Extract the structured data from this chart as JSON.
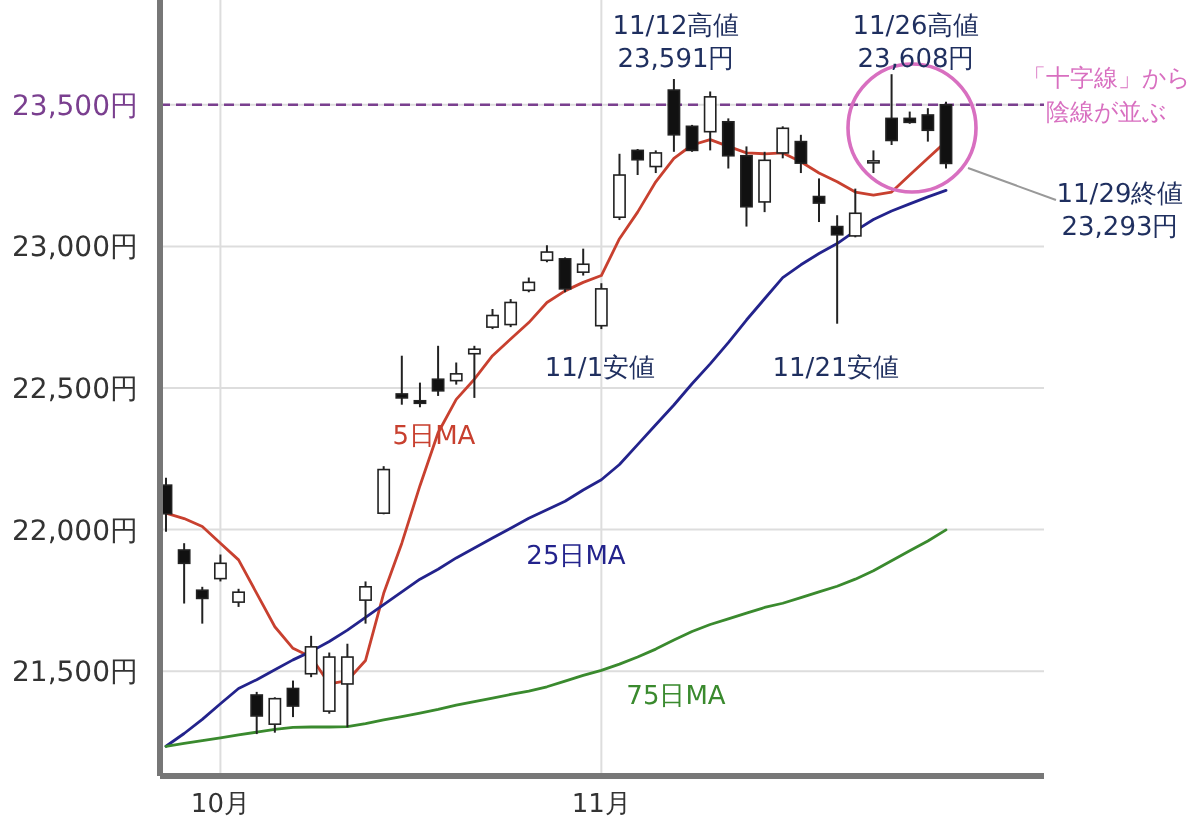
{
  "chart_data": {
    "type": "candlestick",
    "categories": [
      null,
      null,
      null,
      "10月",
      null,
      null,
      null,
      null,
      null,
      null,
      null,
      null,
      null,
      null,
      null,
      null,
      null,
      null,
      null,
      null,
      null,
      null,
      null,
      null,
      "11月",
      null,
      null,
      null,
      null,
      null,
      null,
      null,
      null,
      null,
      null,
      null,
      null,
      null,
      null,
      null,
      null,
      null,
      null,
      null
    ],
    "ohlc": [
      [
        22157,
        22183,
        21992,
        22056
      ],
      [
        21928,
        21952,
        21739,
        21881
      ],
      [
        21786,
        21798,
        21668,
        21757
      ],
      [
        21827,
        21912,
        21817,
        21881
      ],
      [
        21744,
        21791,
        21727,
        21779
      ],
      [
        21416,
        21427,
        21278,
        21342
      ],
      [
        21313,
        21408,
        21283,
        21403
      ],
      [
        21439,
        21467,
        21338,
        21377
      ],
      [
        21491,
        21625,
        21479,
        21586
      ],
      [
        21359,
        21566,
        21350,
        21550
      ],
      [
        21455,
        21597,
        21302,
        21550
      ],
      [
        21751,
        21817,
        21668,
        21798
      ],
      [
        22058,
        22224,
        22054,
        22212
      ],
      [
        22479,
        22614,
        22441,
        22465
      ],
      [
        22455,
        22519,
        22432,
        22446
      ],
      [
        22531,
        22649,
        22472,
        22490
      ],
      [
        22526,
        22590,
        22512,
        22550
      ],
      [
        22621,
        22649,
        22465,
        22637
      ],
      [
        22715,
        22779,
        22708,
        22756
      ],
      [
        22724,
        22814,
        22715,
        22802
      ],
      [
        22845,
        22890,
        22838,
        22873
      ],
      [
        22951,
        23004,
        22944,
        22980
      ],
      [
        22956,
        22961,
        22838,
        22850
      ],
      [
        22909,
        22992,
        22897,
        22937
      ],
      [
        22720,
        22870,
        22708,
        22850
      ],
      [
        23103,
        23327,
        23093,
        23252
      ],
      [
        23339,
        23344,
        23252,
        23306
      ],
      [
        23282,
        23339,
        23259,
        23330
      ],
      [
        23552,
        23591,
        23334,
        23394
      ],
      [
        23424,
        23429,
        23334,
        23339
      ],
      [
        23405,
        23547,
        23339,
        23528
      ],
      [
        23440,
        23452,
        23275,
        23320
      ],
      [
        23320,
        23353,
        23070,
        23140
      ],
      [
        23157,
        23334,
        23121,
        23304
      ],
      [
        23330,
        23424,
        23311,
        23417
      ],
      [
        23370,
        23394,
        23259,
        23294
      ],
      [
        23176,
        23240,
        23086,
        23153
      ],
      [
        23070,
        23110,
        22727,
        23041
      ],
      [
        23037,
        23204,
        23032,
        23117
      ],
      [
        23296,
        23339,
        23259,
        23302
      ],
      [
        23452,
        23608,
        23358,
        23374
      ],
      [
        23452,
        23476,
        23433,
        23438
      ],
      [
        23464,
        23488,
        23370,
        23410
      ],
      [
        23500,
        23511,
        23275,
        23293
      ]
    ],
    "series": [
      {
        "name": "5日MA",
        "type": "line",
        "color": "#c8402f",
        "values": [
          22058,
          22039,
          22011,
          21952,
          21893,
          21775,
          21657,
          21581,
          21550,
          21455,
          21467,
          21538,
          21775,
          21952,
          22155,
          22342,
          22460,
          22531,
          22614,
          22673,
          22731,
          22802,
          22843,
          22873,
          22897,
          23027,
          23121,
          23228,
          23311,
          23358,
          23377,
          23353,
          23330,
          23327,
          23330,
          23299,
          23259,
          23228,
          23192,
          23181,
          23192,
          23252,
          23311,
          23370
        ]
      },
      {
        "name": "25日MA",
        "type": "line",
        "color": "#23238c",
        "values": [
          21235,
          21280,
          21330,
          21385,
          21439,
          21470,
          21505,
          21540,
          21570,
          21605,
          21645,
          21690,
          21735,
          21780,
          21825,
          21860,
          21900,
          21935,
          21970,
          22005,
          22040,
          22070,
          22100,
          22140,
          22176,
          22230,
          22300,
          22370,
          22440,
          22515,
          22585,
          22660,
          22740,
          22815,
          22890,
          22935,
          22975,
          23010,
          23055,
          23095,
          23125,
          23150,
          23175,
          23198
        ]
      },
      {
        "name": "75日MA",
        "type": "line",
        "color": "#3a8a2e",
        "values": [
          21235,
          21245,
          21255,
          21265,
          21275,
          21285,
          21295,
          21302,
          21303,
          21303,
          21304,
          21315,
          21328,
          21340,
          21352,
          21365,
          21380,
          21393,
          21405,
          21418,
          21430,
          21445,
          21465,
          21485,
          21503,
          21525,
          21550,
          21578,
          21610,
          21640,
          21665,
          21685,
          21705,
          21725,
          21740,
          21760,
          21780,
          21800,
          21825,
          21855,
          21890,
          21925,
          21960,
          21999
        ]
      }
    ],
    "ylim": [
      21130,
      23870
    ],
    "yticks": [
      {
        "value": 21500,
        "label": "21,500円"
      },
      {
        "value": 22000,
        "label": "22,000円"
      },
      {
        "value": 22500,
        "label": "22,500円"
      },
      {
        "value": 23000,
        "label": "23,000円"
      },
      {
        "value": 23500,
        "label": "23,500円"
      }
    ],
    "grid": true,
    "ref_lines": [
      {
        "axis": "y",
        "value": 23500,
        "color": "#7a3f8f",
        "line_style": "dashed"
      }
    ],
    "annotations": [
      "11/12高値\n23,591円",
      "11/26高値\n23,608円",
      "11/1安値",
      "11/21安値",
      "11/29終値\n23,293円",
      "「十字線」から",
      "陰線が並ぶ"
    ]
  }
}
